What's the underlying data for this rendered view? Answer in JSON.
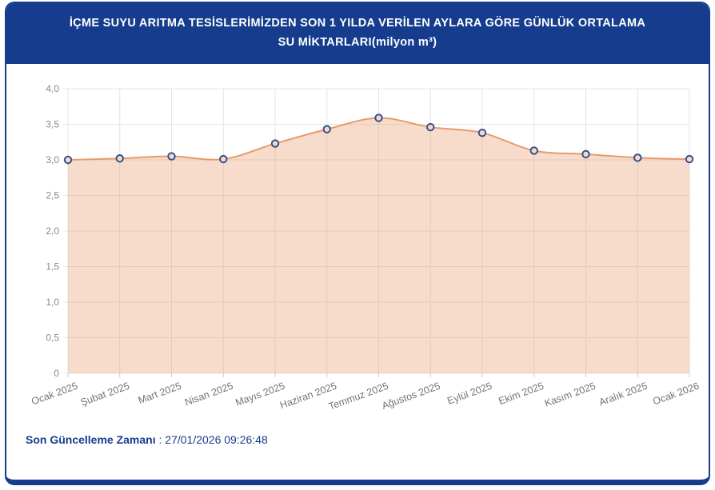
{
  "header": {
    "title": "İÇME SUYU ARITMA TESİSLERİMİZDEN SON 1 YILDA VERİLEN AYLARA GÖRE GÜNLÜK ORTALAMA SU MİKTARLARI(milyon m³)"
  },
  "footer": {
    "label": "Son Güncelleme Zamanı",
    "separator": " : ",
    "value": "27/01/2026 09:26:48"
  },
  "colors": {
    "navy": "#163d8d",
    "line": "#e89a6c",
    "area_fill": "#e89a6c",
    "area_opacity": 0.35,
    "marker_fill": "#f5dbc6",
    "marker_stroke": "#33508f",
    "grid": "#e4e4e4",
    "axis_tick": "#cccccc",
    "y_label": "#8a8a8a",
    "x_label": "#737373"
  },
  "chart_data": {
    "type": "area",
    "title": "İÇME SUYU ARITMA TESİSLERİMİZDEN SON 1 YILDA VERİLEN AYLARA GÖRE GÜNLÜK ORTALAMA SU MİKTARLARI(milyon m³)",
    "categories": [
      "Ocak 2025",
      "Şubat 2025",
      "Mart 2025",
      "Nisan 2025",
      "Mayıs 2025",
      "Haziran 2025",
      "Temmuz 2025",
      "Ağustos 2025",
      "Eylül 2025",
      "Ekim 2025",
      "Kasım 2025",
      "Aralık 2025",
      "Ocak 2026"
    ],
    "values": [
      3.0,
      3.02,
      3.05,
      3.01,
      3.23,
      3.43,
      3.59,
      3.46,
      3.38,
      3.13,
      3.08,
      3.03,
      3.01
    ],
    "xlabel": "",
    "ylabel": "",
    "ylim": [
      0,
      4
    ],
    "ytick_step": 0.5,
    "ytick_labels": [
      "0",
      "0,5",
      "1,0",
      "1,5",
      "2,0",
      "2,5",
      "3,0",
      "3,5",
      "4,0"
    ],
    "grid": true,
    "legend": false,
    "smooth": true,
    "x_label_rotation": -20
  }
}
